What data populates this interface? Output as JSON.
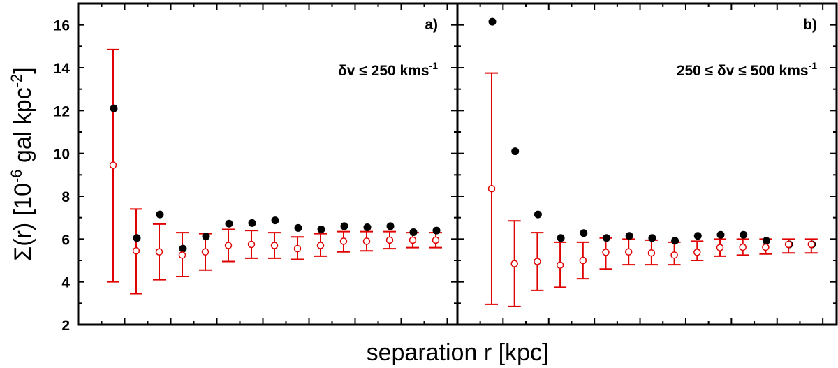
{
  "chart_data": {
    "type": "scatter",
    "ylabel": "Σ(r) [10-6 gal kpc-2]",
    "ylabel_parts": {
      "main": "Σ(r) [10",
      "exp": "-6",
      "unit": " gal kpc",
      "unit_exp": "-2",
      "close": "]"
    },
    "xlabel": "separation r [kpc]",
    "ylim": [
      2,
      17
    ],
    "yticks": [
      2,
      4,
      6,
      8,
      10,
      12,
      14,
      16
    ],
    "panels": [
      {
        "label": "a)",
        "annotation": {
          "main": "δv ≤ 250 kms",
          "exp": "-1"
        },
        "bins": [
          1,
          2,
          3,
          4,
          5,
          6,
          7,
          8,
          9,
          10,
          11,
          12,
          13,
          14,
          15
        ],
        "observed": [
          12.1,
          6.05,
          7.15,
          5.55,
          6.12,
          6.72,
          6.75,
          6.87,
          6.52,
          6.45,
          6.6,
          6.55,
          6.6,
          6.32,
          6.4
        ],
        "random_mean": [
          9.45,
          5.45,
          5.4,
          5.25,
          5.4,
          5.7,
          5.75,
          5.7,
          5.55,
          5.7,
          5.9,
          5.9,
          5.95,
          5.95,
          5.95
        ],
        "random_low": [
          4.0,
          3.45,
          4.1,
          4.25,
          4.55,
          4.95,
          5.1,
          5.1,
          5.05,
          5.2,
          5.4,
          5.45,
          5.55,
          5.6,
          5.6
        ],
        "random_high": [
          14.85,
          7.4,
          6.7,
          6.3,
          6.25,
          6.45,
          6.4,
          6.3,
          6.1,
          6.25,
          6.35,
          6.35,
          6.35,
          6.3,
          6.3
        ]
      },
      {
        "label": "b)",
        "annotation": {
          "main": "250 ≤  δv ≤ 500 kms",
          "exp": "-1"
        },
        "bins": [
          1,
          2,
          3,
          4,
          5,
          6,
          7,
          8,
          9,
          10,
          11,
          12,
          13,
          14,
          15
        ],
        "observed": [
          16.15,
          10.1,
          7.15,
          6.05,
          6.28,
          6.05,
          6.15,
          6.05,
          5.92,
          6.15,
          6.2,
          6.2,
          5.92,
          5.75,
          5.75
        ],
        "random_mean": [
          8.35,
          4.85,
          4.95,
          4.78,
          5.0,
          5.38,
          5.4,
          5.35,
          5.25,
          5.38,
          5.6,
          5.62,
          5.62,
          5.75,
          5.75
        ],
        "random_low": [
          2.95,
          2.85,
          3.6,
          3.75,
          4.15,
          4.6,
          4.8,
          4.8,
          4.8,
          5.0,
          5.2,
          5.25,
          5.3,
          5.35,
          5.35
        ],
        "random_high": [
          13.75,
          6.85,
          6.3,
          5.85,
          5.85,
          6.05,
          6.0,
          5.95,
          5.85,
          5.9,
          6.0,
          6.0,
          6.0,
          6.0,
          6.0
        ]
      }
    ],
    "colors": {
      "observed": "#000000",
      "random": "#e00000",
      "axis": "#000000"
    }
  }
}
